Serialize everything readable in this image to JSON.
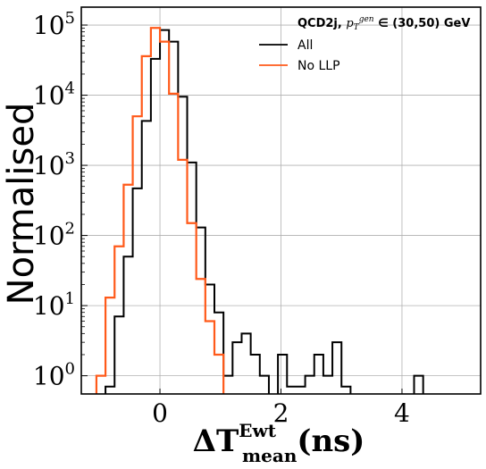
{
  "chart_data": {
    "type": "line",
    "style": "step-histogram",
    "xlabel": {
      "main": "ΔT",
      "sup": "Ewt",
      "sub": "mean",
      "units": "(ns)"
    },
    "ylabel": "Normalised",
    "yscale": "log",
    "xlim": [
      -1.3,
      5.3
    ],
    "ylim": [
      0.55,
      180000
    ],
    "grid": true,
    "legend_position": "top-right",
    "annotation": "QCD2j, p_T^gen ∈ (30,50) GeV",
    "annotation_parts": {
      "lead": "QCD2j, ",
      "p": "p",
      "sub": "T",
      "sup": "gen",
      "tail": " ∈ (30,50) GeV"
    },
    "x_ticks": [
      0,
      2,
      4
    ],
    "x_tick_labels": [
      "0",
      "2",
      "4"
    ],
    "y_ticks": [
      1,
      10,
      100,
      1000,
      10000,
      100000
    ],
    "y_tick_labels": [
      {
        "base": "10",
        "exp": "0"
      },
      {
        "base": "10",
        "exp": "1"
      },
      {
        "base": "10",
        "exp": "2"
      },
      {
        "base": "10",
        "exp": "3"
      },
      {
        "base": "10",
        "exp": "4"
      },
      {
        "base": "10",
        "exp": "5"
      }
    ],
    "bin_width": 0.15,
    "series": [
      {
        "name": "All",
        "color": "#000000",
        "bins": [
          [
            -0.9,
            0.7
          ],
          [
            -0.75,
            7
          ],
          [
            -0.6,
            50
          ],
          [
            -0.45,
            470
          ],
          [
            -0.3,
            4300
          ],
          [
            -0.15,
            33000
          ],
          [
            0.0,
            85000
          ],
          [
            0.15,
            58000
          ],
          [
            0.3,
            9500
          ],
          [
            0.45,
            1100
          ],
          [
            0.6,
            130
          ],
          [
            0.75,
            20
          ],
          [
            0.9,
            8
          ],
          [
            1.05,
            1
          ],
          [
            1.2,
            3
          ],
          [
            1.35,
            4
          ],
          [
            1.5,
            2
          ],
          [
            1.65,
            1
          ],
          [
            1.95,
            2
          ],
          [
            2.1,
            0.7
          ],
          [
            2.25,
            0.7
          ],
          [
            2.4,
            1
          ],
          [
            2.55,
            2
          ],
          [
            2.7,
            1
          ],
          [
            2.85,
            3
          ],
          [
            3.0,
            0.7
          ],
          [
            4.2,
            1
          ]
        ]
      },
      {
        "name": "No LLP",
        "color": "#ff5a1a",
        "bins": [
          [
            -1.05,
            1
          ],
          [
            -0.9,
            13
          ],
          [
            -0.75,
            70
          ],
          [
            -0.6,
            530
          ],
          [
            -0.45,
            5000
          ],
          [
            -0.3,
            36000
          ],
          [
            -0.15,
            91000
          ],
          [
            0.0,
            58000
          ],
          [
            0.15,
            10500
          ],
          [
            0.3,
            1200
          ],
          [
            0.45,
            150
          ],
          [
            0.6,
            24
          ],
          [
            0.75,
            6
          ],
          [
            0.9,
            2
          ]
        ]
      }
    ]
  }
}
